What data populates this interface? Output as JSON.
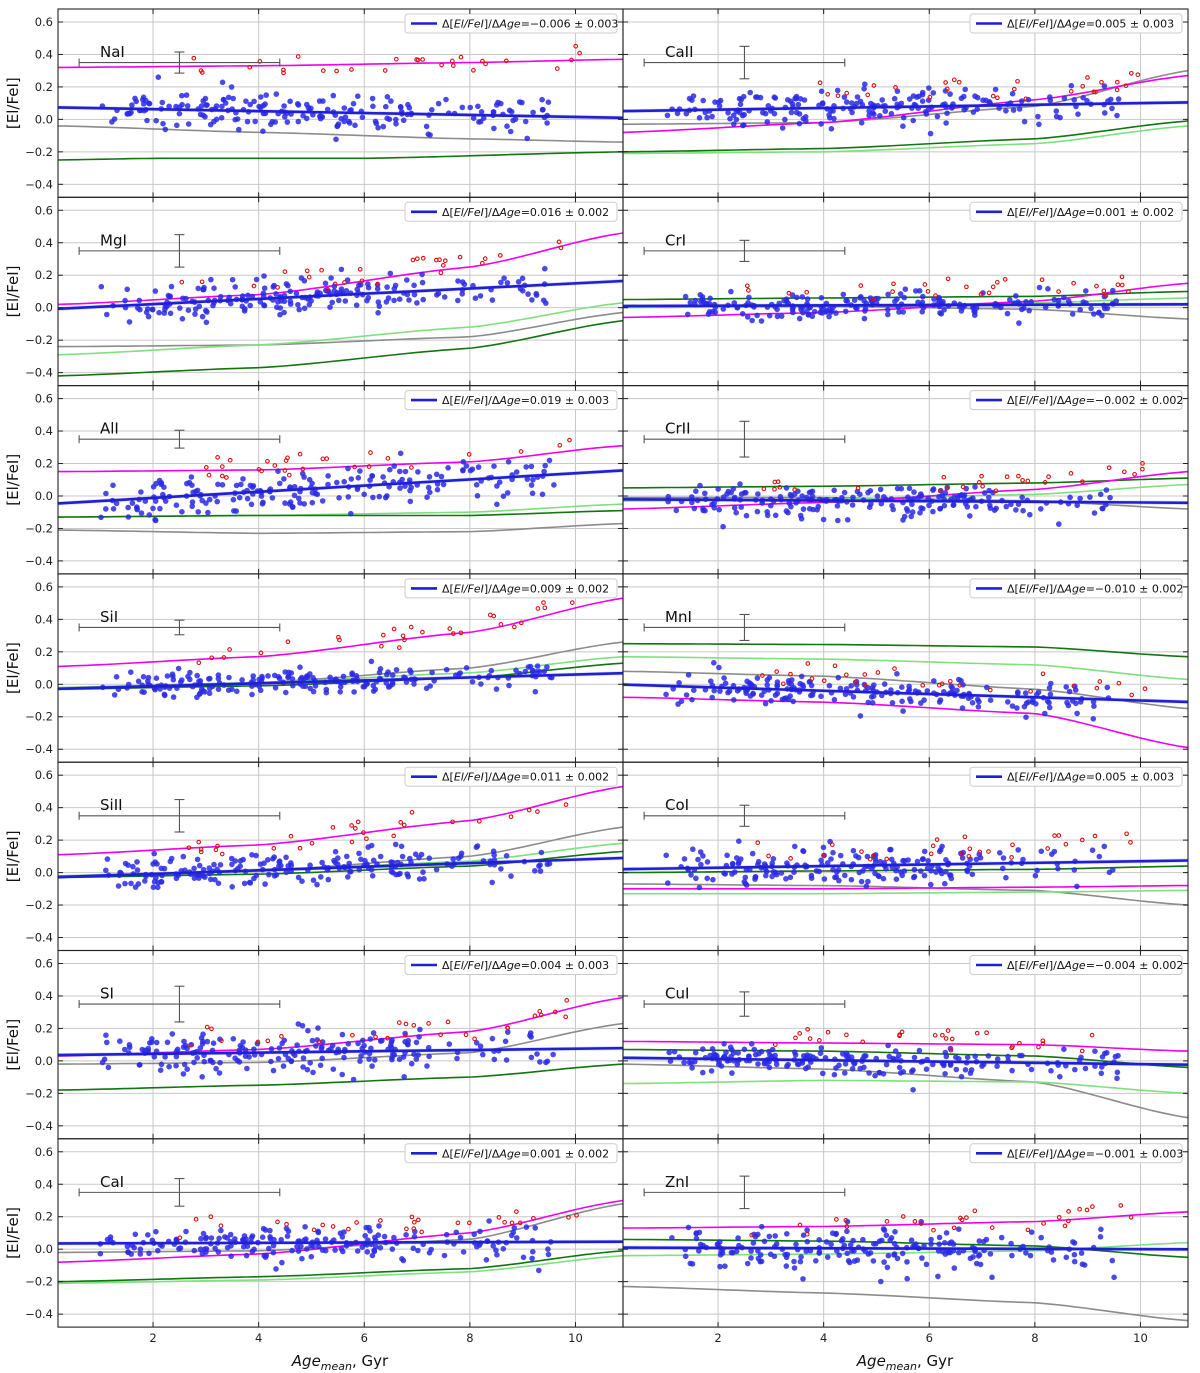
{
  "figure": {
    "xlabel_main": "Age",
    "xlabel_sub": "mean",
    "xlabel_tail": ", Gyr",
    "ylabel": "[El/FeI]",
    "legend_prefix": "Δ[",
    "legend_var": "El/FeI",
    "legend_mid": "]/Δ",
    "legend_age": "Age",
    "legend_eq": "=",
    "pm": "±",
    "colors": {
      "fit": "#1f1fd6",
      "points": "#2a2ae6",
      "outliers": "#e01010",
      "magenta": "#f000f0",
      "gray": "#8c8c8c",
      "green": "#127512",
      "lightgreen": "#7fe07f",
      "errorbar": "#555555",
      "grid": "#c8c8c8"
    },
    "x_ticks": [
      "2",
      "4",
      "6",
      "8",
      "10"
    ],
    "y_ticks": [
      "0.6",
      "0.4",
      "0.2",
      "0.0",
      "−0.2",
      "−0.4"
    ]
  },
  "chart_data": [
    {
      "panel": "NaI",
      "type": "scatter",
      "xlim": [
        0.2,
        10.9
      ],
      "ylim": [
        -0.48,
        0.68
      ],
      "slope": "−0.006",
      "err": "0.003",
      "fit": [
        0.075,
        -0.006
      ],
      "scatter_sd": 0.06,
      "errorbar": {
        "x": 2.5,
        "y": 0.35,
        "xerr": 1.9,
        "yerr": 0.065
      },
      "magenta": [
        [
          0.2,
          0.32
        ],
        [
          4,
          0.33
        ],
        [
          8,
          0.35
        ],
        [
          10.9,
          0.37
        ]
      ],
      "gray": [
        [
          0.2,
          -0.04
        ],
        [
          4,
          -0.08
        ],
        [
          8,
          -0.12
        ],
        [
          10.9,
          -0.14
        ]
      ],
      "green": [
        [
          0.2,
          -0.25
        ],
        [
          2,
          -0.24
        ],
        [
          6,
          -0.24
        ],
        [
          10.9,
          -0.2
        ]
      ],
      "lightgreen": null
    },
    {
      "panel": "CaII",
      "type": "scatter",
      "xlim": [
        0.2,
        10.9
      ],
      "ylim": [
        -0.48,
        0.68
      ],
      "slope": "0.005",
      "err": "0.003",
      "fit": [
        0.05,
        0.005
      ],
      "scatter_sd": 0.06,
      "errorbar": {
        "x": 2.5,
        "y": 0.35,
        "xerr": 1.9,
        "yerr": 0.1
      },
      "magenta": [
        [
          0.2,
          -0.08
        ],
        [
          4,
          -0.02
        ],
        [
          8,
          0.12
        ],
        [
          10.9,
          0.27
        ]
      ],
      "gray": [
        [
          0.2,
          -0.03
        ],
        [
          4,
          -0.02
        ],
        [
          8,
          0.08
        ],
        [
          10.9,
          0.3
        ]
      ],
      "green": [
        [
          0.2,
          -0.2
        ],
        [
          4,
          -0.18
        ],
        [
          8,
          -0.12
        ],
        [
          10.9,
          -0.01
        ]
      ],
      "lightgreen": [
        [
          0.2,
          -0.21
        ],
        [
          4,
          -0.2
        ],
        [
          8,
          -0.15
        ],
        [
          10.9,
          -0.04
        ]
      ]
    },
    {
      "panel": "MgI",
      "type": "scatter",
      "xlim": [
        0.2,
        10.9
      ],
      "ylim": [
        -0.48,
        0.68
      ],
      "slope": "0.016",
      "err": "0.002",
      "fit": [
        -0.01,
        0.016
      ],
      "scatter_sd": 0.06,
      "errorbar": {
        "x": 2.5,
        "y": 0.35,
        "xerr": 1.9,
        "yerr": 0.1
      },
      "magenta": [
        [
          0.2,
          0.02
        ],
        [
          4,
          0.08
        ],
        [
          8,
          0.25
        ],
        [
          10.9,
          0.46
        ]
      ],
      "gray": [
        [
          0.2,
          -0.24
        ],
        [
          4,
          -0.23
        ],
        [
          8,
          -0.18
        ],
        [
          10.9,
          -0.03
        ]
      ],
      "green": [
        [
          0.2,
          -0.42
        ],
        [
          4,
          -0.37
        ],
        [
          8,
          -0.25
        ],
        [
          10.9,
          -0.08
        ]
      ],
      "lightgreen": [
        [
          0.2,
          -0.29
        ],
        [
          4,
          -0.23
        ],
        [
          8,
          -0.12
        ],
        [
          10.9,
          0.03
        ]
      ]
    },
    {
      "panel": "CrI",
      "type": "scatter",
      "xlim": [
        0.2,
        10.9
      ],
      "ylim": [
        -0.48,
        0.68
      ],
      "slope": "0.001",
      "err": "0.002",
      "fit": [
        0.01,
        0.001
      ],
      "scatter_sd": 0.04,
      "errorbar": {
        "x": 2.5,
        "y": 0.35,
        "xerr": 1.9,
        "yerr": 0.065
      },
      "magenta": [
        [
          0.2,
          -0.06
        ],
        [
          4,
          -0.03
        ],
        [
          8,
          0.04
        ],
        [
          10.9,
          0.15
        ]
      ],
      "gray": [
        [
          0.2,
          0.01
        ],
        [
          4,
          0.01
        ],
        [
          8,
          -0.01
        ],
        [
          10.9,
          -0.07
        ]
      ],
      "green": [
        [
          0.2,
          0.05
        ],
        [
          4,
          0.06
        ],
        [
          8,
          0.07
        ],
        [
          10.9,
          0.1
        ]
      ],
      "lightgreen": [
        [
          0.2,
          0.0
        ],
        [
          4,
          0.01
        ],
        [
          8,
          0.03
        ],
        [
          10.9,
          0.06
        ]
      ]
    },
    {
      "panel": "AlI",
      "type": "scatter",
      "xlim": [
        0.2,
        10.9
      ],
      "ylim": [
        -0.48,
        0.68
      ],
      "slope": "0.019",
      "err": "0.003",
      "fit": [
        -0.05,
        0.019
      ],
      "scatter_sd": 0.06,
      "errorbar": {
        "x": 2.5,
        "y": 0.35,
        "xerr": 1.9,
        "yerr": 0.055
      },
      "magenta": [
        [
          0.2,
          0.15
        ],
        [
          4,
          0.16
        ],
        [
          8,
          0.21
        ],
        [
          10.9,
          0.31
        ]
      ],
      "gray": [
        [
          0.2,
          -0.21
        ],
        [
          4,
          -0.23
        ],
        [
          8,
          -0.22
        ],
        [
          10.9,
          -0.17
        ]
      ],
      "green": [
        [
          0.2,
          -0.13
        ],
        [
          4,
          -0.12
        ],
        [
          8,
          -0.12
        ],
        [
          10.9,
          -0.09
        ]
      ],
      "lightgreen": [
        [
          0.2,
          -0.13
        ],
        [
          4,
          -0.12
        ],
        [
          8,
          -0.1
        ],
        [
          10.9,
          -0.05
        ]
      ]
    },
    {
      "panel": "CrII",
      "type": "scatter",
      "xlim": [
        0.2,
        10.9
      ],
      "ylim": [
        -0.48,
        0.68
      ],
      "slope": "−0.002",
      "err": "0.002",
      "fit": [
        -0.02,
        -0.002
      ],
      "scatter_sd": 0.05,
      "errorbar": {
        "x": 2.5,
        "y": 0.35,
        "xerr": 1.9,
        "yerr": 0.11
      },
      "magenta": [
        [
          0.2,
          -0.08
        ],
        [
          4,
          -0.04
        ],
        [
          8,
          0.04
        ],
        [
          10.9,
          0.15
        ]
      ],
      "gray": [
        [
          0.2,
          -0.01
        ],
        [
          4,
          -0.01
        ],
        [
          8,
          -0.03
        ],
        [
          10.9,
          -0.08
        ]
      ],
      "green": [
        [
          0.2,
          0.05
        ],
        [
          4,
          0.06
        ],
        [
          8,
          0.08
        ],
        [
          10.9,
          0.11
        ]
      ],
      "lightgreen": [
        [
          0.2,
          -0.03
        ],
        [
          4,
          -0.02
        ],
        [
          8,
          0.01
        ],
        [
          10.9,
          0.07
        ]
      ]
    },
    {
      "panel": "SiI",
      "type": "scatter",
      "xlim": [
        0.2,
        10.9
      ],
      "ylim": [
        -0.48,
        0.68
      ],
      "slope": "0.009",
      "err": "0.002",
      "fit": [
        -0.03,
        0.009
      ],
      "scatter_sd": 0.04,
      "errorbar": {
        "x": 2.5,
        "y": 0.35,
        "xerr": 1.9,
        "yerr": 0.045
      },
      "magenta": [
        [
          0.2,
          0.11
        ],
        [
          4,
          0.17
        ],
        [
          8,
          0.32
        ],
        [
          10.9,
          0.53
        ]
      ],
      "gray": [
        [
          0.2,
          -0.03
        ],
        [
          4,
          0.01
        ],
        [
          8,
          0.1
        ],
        [
          10.9,
          0.26
        ]
      ],
      "green": [
        [
          0.2,
          -0.03
        ],
        [
          4,
          -0.01
        ],
        [
          8,
          0.04
        ],
        [
          10.9,
          0.13
        ]
      ],
      "lightgreen": [
        [
          0.2,
          -0.02
        ],
        [
          4,
          0.01
        ],
        [
          8,
          0.07
        ],
        [
          10.9,
          0.17
        ]
      ]
    },
    {
      "panel": "MnI",
      "type": "scatter",
      "xlim": [
        0.2,
        10.9
      ],
      "ylim": [
        -0.48,
        0.68
      ],
      "slope": "−0.010",
      "err": "0.002",
      "fit": [
        0.0,
        -0.01
      ],
      "scatter_sd": 0.05,
      "errorbar": {
        "x": 2.5,
        "y": 0.35,
        "xerr": 1.9,
        "yerr": 0.08
      },
      "magenta": [
        [
          0.2,
          -0.08
        ],
        [
          4,
          -0.11
        ],
        [
          8,
          -0.18
        ],
        [
          10.9,
          -0.39
        ]
      ],
      "gray": [
        [
          0.2,
          0.08
        ],
        [
          4,
          0.05
        ],
        [
          8,
          -0.03
        ],
        [
          10.9,
          -0.15
        ]
      ],
      "green": [
        [
          0.2,
          0.25
        ],
        [
          4,
          0.245
        ],
        [
          8,
          0.23
        ],
        [
          10.9,
          0.17
        ]
      ],
      "lightgreen": [
        [
          0.2,
          0.17
        ],
        [
          4,
          0.155
        ],
        [
          8,
          0.12
        ],
        [
          10.9,
          0.03
        ]
      ]
    },
    {
      "panel": "SiII",
      "type": "scatter",
      "xlim": [
        0.2,
        10.9
      ],
      "ylim": [
        -0.48,
        0.68
      ],
      "slope": "0.011",
      "err": "0.002",
      "fit": [
        -0.03,
        0.011
      ],
      "scatter_sd": 0.05,
      "errorbar": {
        "x": 2.5,
        "y": 0.35,
        "xerr": 1.9,
        "yerr": 0.1
      },
      "magenta": [
        [
          0.2,
          0.11
        ],
        [
          4,
          0.17
        ],
        [
          8,
          0.32
        ],
        [
          10.9,
          0.53
        ]
      ],
      "gray": [
        [
          0.2,
          -0.03
        ],
        [
          4,
          0.01
        ],
        [
          8,
          0.1
        ],
        [
          10.9,
          0.28
        ]
      ],
      "green": [
        [
          0.2,
          -0.03
        ],
        [
          4,
          -0.01
        ],
        [
          8,
          0.04
        ],
        [
          10.9,
          0.13
        ]
      ],
      "lightgreen": [
        [
          0.2,
          -0.02
        ],
        [
          4,
          0.01
        ],
        [
          8,
          0.07
        ],
        [
          10.9,
          0.18
        ]
      ]
    },
    {
      "panel": "CoI",
      "type": "scatter",
      "xlim": [
        0.2,
        10.9
      ],
      "ylim": [
        -0.48,
        0.68
      ],
      "slope": "0.005",
      "err": "0.003",
      "fit": [
        0.02,
        0.005
      ],
      "scatter_sd": 0.06,
      "errorbar": {
        "x": 2.5,
        "y": 0.35,
        "xerr": 1.9,
        "yerr": 0.065
      },
      "magenta": [
        [
          0.2,
          -0.1
        ],
        [
          4,
          -0.1
        ],
        [
          8,
          -0.09
        ],
        [
          10.9,
          -0.08
        ]
      ],
      "gray": [
        [
          0.2,
          -0.07
        ],
        [
          4,
          -0.08
        ],
        [
          8,
          -0.11
        ],
        [
          10.9,
          -0.2
        ]
      ],
      "green": [
        [
          0.2,
          0.0
        ],
        [
          4,
          0.01
        ],
        [
          8,
          0.02
        ],
        [
          10.9,
          0.04
        ]
      ],
      "lightgreen": [
        [
          0.2,
          -0.13
        ],
        [
          4,
          -0.13
        ],
        [
          8,
          -0.12
        ],
        [
          10.9,
          -0.11
        ]
      ]
    },
    {
      "panel": "SI",
      "type": "scatter",
      "xlim": [
        0.2,
        10.9
      ],
      "ylim": [
        -0.48,
        0.68
      ],
      "slope": "0.004",
      "err": "0.003",
      "fit": [
        0.035,
        0.004
      ],
      "scatter_sd": 0.07,
      "errorbar": {
        "x": 2.5,
        "y": 0.35,
        "xerr": 1.9,
        "yerr": 0.11
      },
      "magenta": [
        [
          0.2,
          0.03
        ],
        [
          4,
          0.07
        ],
        [
          8,
          0.18
        ],
        [
          10.9,
          0.39
        ]
      ],
      "gray": [
        [
          0.2,
          -0.02
        ],
        [
          4,
          -0.01
        ],
        [
          8,
          0.05
        ],
        [
          10.9,
          0.23
        ]
      ],
      "green": [
        [
          0.2,
          -0.18
        ],
        [
          4,
          -0.15
        ],
        [
          8,
          -0.1
        ],
        [
          10.9,
          -0.02
        ]
      ],
      "lightgreen": null
    },
    {
      "panel": "CuI",
      "type": "scatter",
      "xlim": [
        0.2,
        10.9
      ],
      "ylim": [
        -0.48,
        0.68
      ],
      "slope": "−0.004",
      "err": "0.002",
      "fit": [
        0.02,
        -0.004
      ],
      "scatter_sd": 0.05,
      "errorbar": {
        "x": 2.5,
        "y": 0.35,
        "xerr": 1.9,
        "yerr": 0.075
      },
      "magenta": [
        [
          0.2,
          0.12
        ],
        [
          4,
          0.11
        ],
        [
          8,
          0.1
        ],
        [
          10.9,
          0.06
        ]
      ],
      "gray": [
        [
          0.2,
          -0.02
        ],
        [
          4,
          -0.05
        ],
        [
          8,
          -0.13
        ],
        [
          10.9,
          -0.35
        ]
      ],
      "green": [
        [
          0.2,
          0.07
        ],
        [
          4,
          0.06
        ],
        [
          8,
          0.03
        ],
        [
          10.9,
          -0.04
        ]
      ],
      "lightgreen": [
        [
          0.2,
          -0.14
        ],
        [
          4,
          -0.12
        ],
        [
          8,
          -0.13
        ],
        [
          10.9,
          -0.2
        ]
      ]
    },
    {
      "panel": "CaI",
      "type": "scatter",
      "xlim": [
        0.2,
        10.9
      ],
      "ylim": [
        -0.48,
        0.68
      ],
      "slope": "0.001",
      "err": "0.002",
      "fit": [
        0.035,
        0.001
      ],
      "scatter_sd": 0.05,
      "errorbar": {
        "x": 2.5,
        "y": 0.35,
        "xerr": 1.9,
        "yerr": 0.085
      },
      "magenta": [
        [
          0.2,
          -0.08
        ],
        [
          4,
          -0.03
        ],
        [
          8,
          0.1
        ],
        [
          10.9,
          0.3
        ]
      ],
      "gray": [
        [
          0.2,
          -0.02
        ],
        [
          4,
          -0.01
        ],
        [
          8,
          0.06
        ],
        [
          10.9,
          0.28
        ]
      ],
      "green": [
        [
          0.2,
          -0.2
        ],
        [
          4,
          -0.17
        ],
        [
          8,
          -0.12
        ],
        [
          10.9,
          -0.01
        ]
      ],
      "lightgreen": [
        [
          0.2,
          -0.21
        ],
        [
          4,
          -0.19
        ],
        [
          8,
          -0.14
        ],
        [
          10.9,
          -0.04
        ]
      ]
    },
    {
      "panel": "ZnI",
      "type": "scatter",
      "xlim": [
        0.2,
        10.9
      ],
      "ylim": [
        -0.48,
        0.68
      ],
      "slope": "−0.001",
      "err": "0.003",
      "fit": [
        0.01,
        -0.001
      ],
      "scatter_sd": 0.07,
      "errorbar": {
        "x": 2.5,
        "y": 0.35,
        "xerr": 1.9,
        "yerr": 0.1
      },
      "magenta": [
        [
          0.2,
          0.13
        ],
        [
          4,
          0.14
        ],
        [
          8,
          0.17
        ],
        [
          10.9,
          0.23
        ]
      ],
      "gray": [
        [
          0.2,
          -0.23
        ],
        [
          4,
          -0.27
        ],
        [
          8,
          -0.33
        ],
        [
          10.9,
          -0.44
        ]
      ],
      "green": [
        [
          0.2,
          0.06
        ],
        [
          4,
          0.05
        ],
        [
          8,
          0.02
        ],
        [
          10.9,
          -0.05
        ]
      ],
      "lightgreen": [
        [
          0.2,
          -0.04
        ],
        [
          4,
          -0.03
        ],
        [
          8,
          -0.01
        ],
        [
          10.9,
          0.04
        ]
      ]
    }
  ]
}
